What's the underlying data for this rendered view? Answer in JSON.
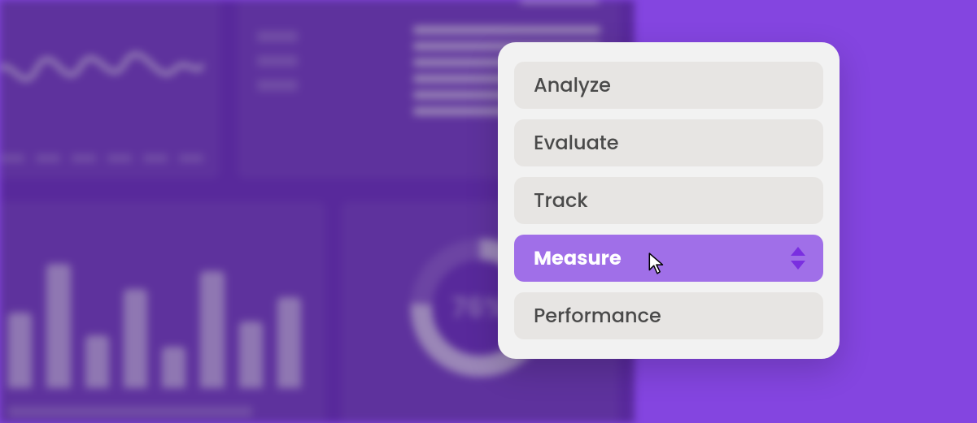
{
  "colors": {
    "brand": "#8445e0",
    "brand_dark": "#6e34c2",
    "item_bg": "#e7e5e3",
    "text": "#4a4a4a",
    "selected_bg": "#a06fe8",
    "caret": "#7a2fe0"
  },
  "menu": {
    "items": [
      {
        "label": "Analyze",
        "selected": false
      },
      {
        "label": "Evaluate",
        "selected": false
      },
      {
        "label": "Track",
        "selected": false
      },
      {
        "label": "Measure",
        "selected": true
      },
      {
        "label": "Performance",
        "selected": false
      }
    ],
    "cursor_on_index": 3
  },
  "backdrop": {
    "donut_pct_label": "76%",
    "bar_heights_pct": [
      55,
      90,
      38,
      72,
      30,
      85,
      48,
      66
    ],
    "stat_bar_widths_pct": [
      100,
      100,
      100,
      100,
      82,
      60
    ]
  }
}
